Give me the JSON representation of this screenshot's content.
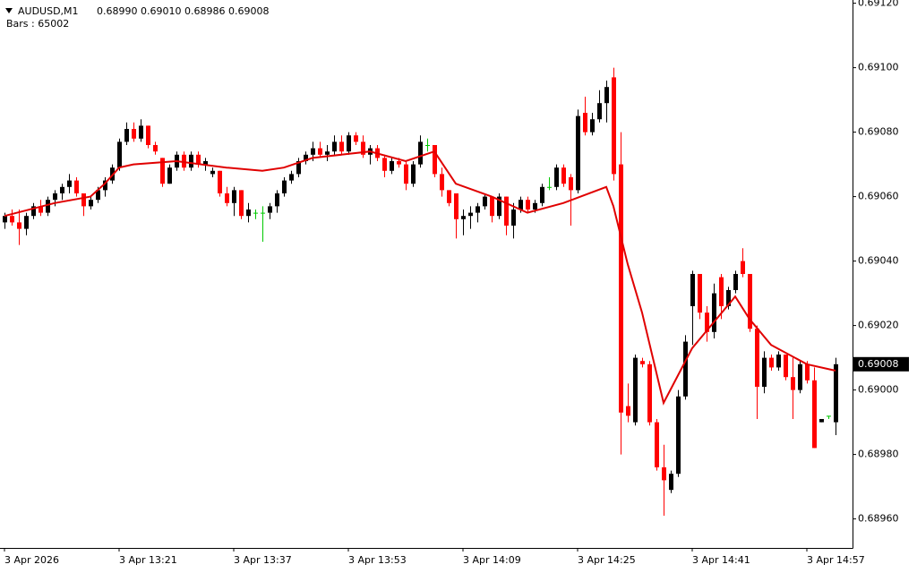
{
  "chart_data": {
    "type": "candlestick",
    "symbol": "AUDUSD,M1",
    "ohlc_text": "0.68990 0.69010 0.68986 0.69008",
    "bars_text": "Bars : 65002",
    "up_color": "#000000",
    "down_color": "#ff0000",
    "doji_color": "#00c800",
    "open": [
      0.69052,
      0.69054,
      0.69052,
      0.6905,
      0.69054,
      0.69057,
      0.69055,
      0.69059,
      0.69061,
      0.69063,
      0.69065,
      0.69061,
      0.69057,
      0.69059,
      0.69062,
      0.69065,
      0.69069,
      0.69077,
      0.69081,
      0.69078,
      0.69082,
      0.69076,
      0.69072,
      0.69064,
      0.69069,
      0.69073,
      0.69069,
      0.69073,
      0.6907,
      0.69067,
      0.69068,
      0.69061,
      0.69058,
      0.69062,
      0.69054,
      0.69055,
      0.69055,
      0.69055,
      0.69057,
      0.69061,
      0.69065,
      0.69067,
      0.69071,
      0.69073,
      0.69075,
      0.69073,
      0.69074,
      0.69077,
      0.69074,
      0.69079,
      0.69077,
      0.69073,
      0.69075,
      0.69072,
      0.69068,
      0.69071,
      0.6907,
      0.69064,
      0.6907,
      0.69076,
      0.69076,
      0.69067,
      0.69062,
      0.69061,
      0.69053,
      0.69054,
      0.69055,
      0.69057,
      0.6906,
      0.69054,
      0.6906,
      0.69051,
      0.69056,
      0.69059,
      0.69056,
      0.69058,
      0.69063,
      0.69063,
      0.69069,
      0.69066,
      0.69062,
      0.69086,
      0.6908,
      0.69084,
      0.69089,
      0.69097,
      0.6907,
      0.68995,
      0.6899,
      0.69009,
      0.69008,
      0.6899,
      0.68976,
      0.68969,
      0.68974,
      0.68998,
      0.69026,
      0.69036,
      0.69024,
      0.69018,
      0.69035,
      0.69026,
      0.69031,
      0.6904,
      0.69036,
      0.69019,
      0.69001,
      0.6901,
      0.69007,
      0.69011,
      0.69004,
      0.69,
      0.69008,
      0.69003,
      0.6899,
      0.68992,
      0.6899
    ],
    "high": [
      0.69055,
      0.69056,
      0.69056,
      0.69055,
      0.69058,
      0.69059,
      0.6906,
      0.69062,
      0.69064,
      0.69067,
      0.69066,
      0.69061,
      0.6906,
      0.69063,
      0.69066,
      0.6907,
      0.69078,
      0.69083,
      0.69083,
      0.69084,
      0.69082,
      0.69077,
      0.69072,
      0.6907,
      0.69074,
      0.69074,
      0.69074,
      0.69074,
      0.69072,
      0.69069,
      0.69068,
      0.69063,
      0.69063,
      0.69062,
      0.69058,
      0.69056,
      0.69057,
      0.69058,
      0.69062,
      0.69066,
      0.69068,
      0.69072,
      0.69074,
      0.69077,
      0.69077,
      0.69076,
      0.69079,
      0.69079,
      0.6908,
      0.6908,
      0.69079,
      0.69076,
      0.69076,
      0.69073,
      0.69072,
      0.69072,
      0.69071,
      0.69071,
      0.69079,
      0.69078,
      0.69076,
      0.69069,
      0.69062,
      0.69061,
      0.69056,
      0.69057,
      0.69058,
      0.69061,
      0.6906,
      0.69061,
      0.6906,
      0.69058,
      0.6906,
      0.6906,
      0.69059,
      0.69064,
      0.69066,
      0.6907,
      0.6907,
      0.69067,
      0.69087,
      0.69091,
      0.69086,
      0.69093,
      0.69096,
      0.691,
      0.6908,
      0.69002,
      0.69011,
      0.6901,
      0.69009,
      0.68991,
      0.68983,
      0.68975,
      0.69,
      0.69017,
      0.69037,
      0.69036,
      0.69026,
      0.69033,
      0.69036,
      0.69032,
      0.69037,
      0.69044,
      0.69036,
      0.6902,
      0.69012,
      0.69011,
      0.69012,
      0.69011,
      0.6901,
      0.69009,
      0.69009,
      0.69007,
      0.68991,
      0.68992,
      0.6901
    ],
    "low": [
      0.6905,
      0.69051,
      0.69045,
      0.69048,
      0.69053,
      0.69054,
      0.69054,
      0.69057,
      0.69059,
      0.69061,
      0.6906,
      0.69054,
      0.69056,
      0.69058,
      0.6906,
      0.69064,
      0.69068,
      0.69076,
      0.69077,
      0.69077,
      0.69075,
      0.69073,
      0.69063,
      0.69064,
      0.69068,
      0.69068,
      0.69068,
      0.69069,
      0.69068,
      0.69066,
      0.6906,
      0.69057,
      0.69054,
      0.69053,
      0.69052,
      0.69053,
      0.69046,
      0.69053,
      0.69055,
      0.6906,
      0.69064,
      0.69066,
      0.6907,
      0.69071,
      0.69072,
      0.69071,
      0.69073,
      0.69073,
      0.69073,
      0.69076,
      0.69072,
      0.6907,
      0.69071,
      0.69066,
      0.69067,
      0.69069,
      0.69062,
      0.69063,
      0.69069,
      0.69074,
      0.69066,
      0.6906,
      0.69057,
      0.69047,
      0.69048,
      0.6905,
      0.69052,
      0.69056,
      0.69052,
      0.69053,
      0.69048,
      0.69047,
      0.69055,
      0.69055,
      0.69055,
      0.69057,
      0.69062,
      0.69062,
      0.69063,
      0.69051,
      0.69061,
      0.69079,
      0.69079,
      0.69083,
      0.69083,
      0.69065,
      0.6898,
      0.6899,
      0.68989,
      0.69007,
      0.68989,
      0.68975,
      0.68961,
      0.68968,
      0.68973,
      0.68997,
      0.69014,
      0.69022,
      0.69015,
      0.69016,
      0.69022,
      0.69025,
      0.6903,
      0.69035,
      0.69018,
      0.68991,
      0.68999,
      0.69006,
      0.69006,
      0.69003,
      0.68991,
      0.68999,
      0.69002,
      0.68982,
      0.6899,
      0.68991,
      0.68986
    ],
    "close": [
      0.69054,
      0.69052,
      0.6905,
      0.69054,
      0.69057,
      0.69055,
      0.69059,
      0.69061,
      0.69063,
      0.69065,
      0.69061,
      0.69057,
      0.69059,
      0.69062,
      0.69065,
      0.69069,
      0.69077,
      0.69081,
      0.69078,
      0.69082,
      0.69076,
      0.69074,
      0.69064,
      0.69069,
      0.69073,
      0.69069,
      0.69073,
      0.6907,
      0.69071,
      0.69068,
      0.69061,
      0.69058,
      0.69062,
      0.69054,
      0.69056,
      0.69055,
      0.69055,
      0.69057,
      0.69061,
      0.69065,
      0.69067,
      0.69071,
      0.69073,
      0.69075,
      0.69073,
      0.69074,
      0.69077,
      0.69074,
      0.69079,
      0.69077,
      0.69073,
      0.69075,
      0.69072,
      0.69068,
      0.69071,
      0.6907,
      0.69064,
      0.6907,
      0.69077,
      0.69076,
      0.69067,
      0.69062,
      0.69058,
      0.69053,
      0.69054,
      0.69055,
      0.69057,
      0.6906,
      0.69054,
      0.6906,
      0.69051,
      0.69056,
      0.69059,
      0.69056,
      0.69058,
      0.69063,
      0.69063,
      0.69069,
      0.69064,
      0.69062,
      0.69085,
      0.6908,
      0.69084,
      0.69089,
      0.69094,
      0.69067,
      0.68993,
      0.68992,
      0.6901,
      0.69008,
      0.6899,
      0.68976,
      0.68972,
      0.68974,
      0.68998,
      0.69015,
      0.69036,
      0.69024,
      0.69018,
      0.6903,
      0.69026,
      0.69031,
      0.69036,
      0.69036,
      0.69019,
      0.69001,
      0.6901,
      0.69007,
      0.69011,
      0.69004,
      0.69,
      0.69008,
      0.69003,
      0.68982,
      0.68991,
      0.68992,
      0.69008
    ],
    "ma": {
      "color": "#e00000",
      "x": [
        0,
        7,
        12,
        14,
        16,
        18,
        24,
        31,
        36,
        39,
        43,
        51,
        56,
        60,
        63,
        68,
        73,
        78,
        84,
        85,
        87,
        89,
        92,
        96,
        99,
        102,
        104,
        107,
        112,
        116
      ],
      "values": [
        0.69054,
        0.69058,
        0.6906,
        0.69064,
        0.69069,
        0.6907,
        0.69071,
        0.69069,
        0.69068,
        0.69069,
        0.69072,
        0.69074,
        0.69071,
        0.69074,
        0.69064,
        0.6906,
        0.69055,
        0.69058,
        0.69063,
        0.69057,
        0.69039,
        0.69024,
        0.68996,
        0.69013,
        0.69021,
        0.69029,
        0.69022,
        0.69014,
        0.69008,
        0.69006
      ]
    },
    "last_price": {
      "value": 0.69008,
      "label": "0.69008"
    },
    "xlim": [
      -0.625,
      118.375
    ],
    "xticks": [
      {
        "value": 0,
        "label": "3 Apr 2026"
      },
      {
        "value": 16,
        "label": "3 Apr 13:21"
      },
      {
        "value": 32,
        "label": "3 Apr 13:37"
      },
      {
        "value": 48,
        "label": "3 Apr 13:53"
      },
      {
        "value": 64,
        "label": "3 Apr 14:09"
      },
      {
        "value": 80,
        "label": "3 Apr 14:25"
      },
      {
        "value": 96,
        "label": "3 Apr 14:41"
      },
      {
        "value": 112,
        "label": "3 Apr 14:57"
      }
    ],
    "ylim": [
      0.68951,
      0.69121
    ],
    "yticks": [
      {
        "value": 0.6896,
        "label": "0.68960"
      },
      {
        "value": 0.6898,
        "label": "0.68980"
      },
      {
        "value": 0.69,
        "label": "0.69000"
      },
      {
        "value": 0.6902,
        "label": "0.69020"
      },
      {
        "value": 0.6904,
        "label": "0.69040"
      },
      {
        "value": 0.6906,
        "label": "0.69060"
      },
      {
        "value": 0.6908,
        "label": "0.69080"
      },
      {
        "value": 0.691,
        "label": "0.69100"
      },
      {
        "value": 0.6912,
        "label": "0.69120"
      }
    ]
  }
}
